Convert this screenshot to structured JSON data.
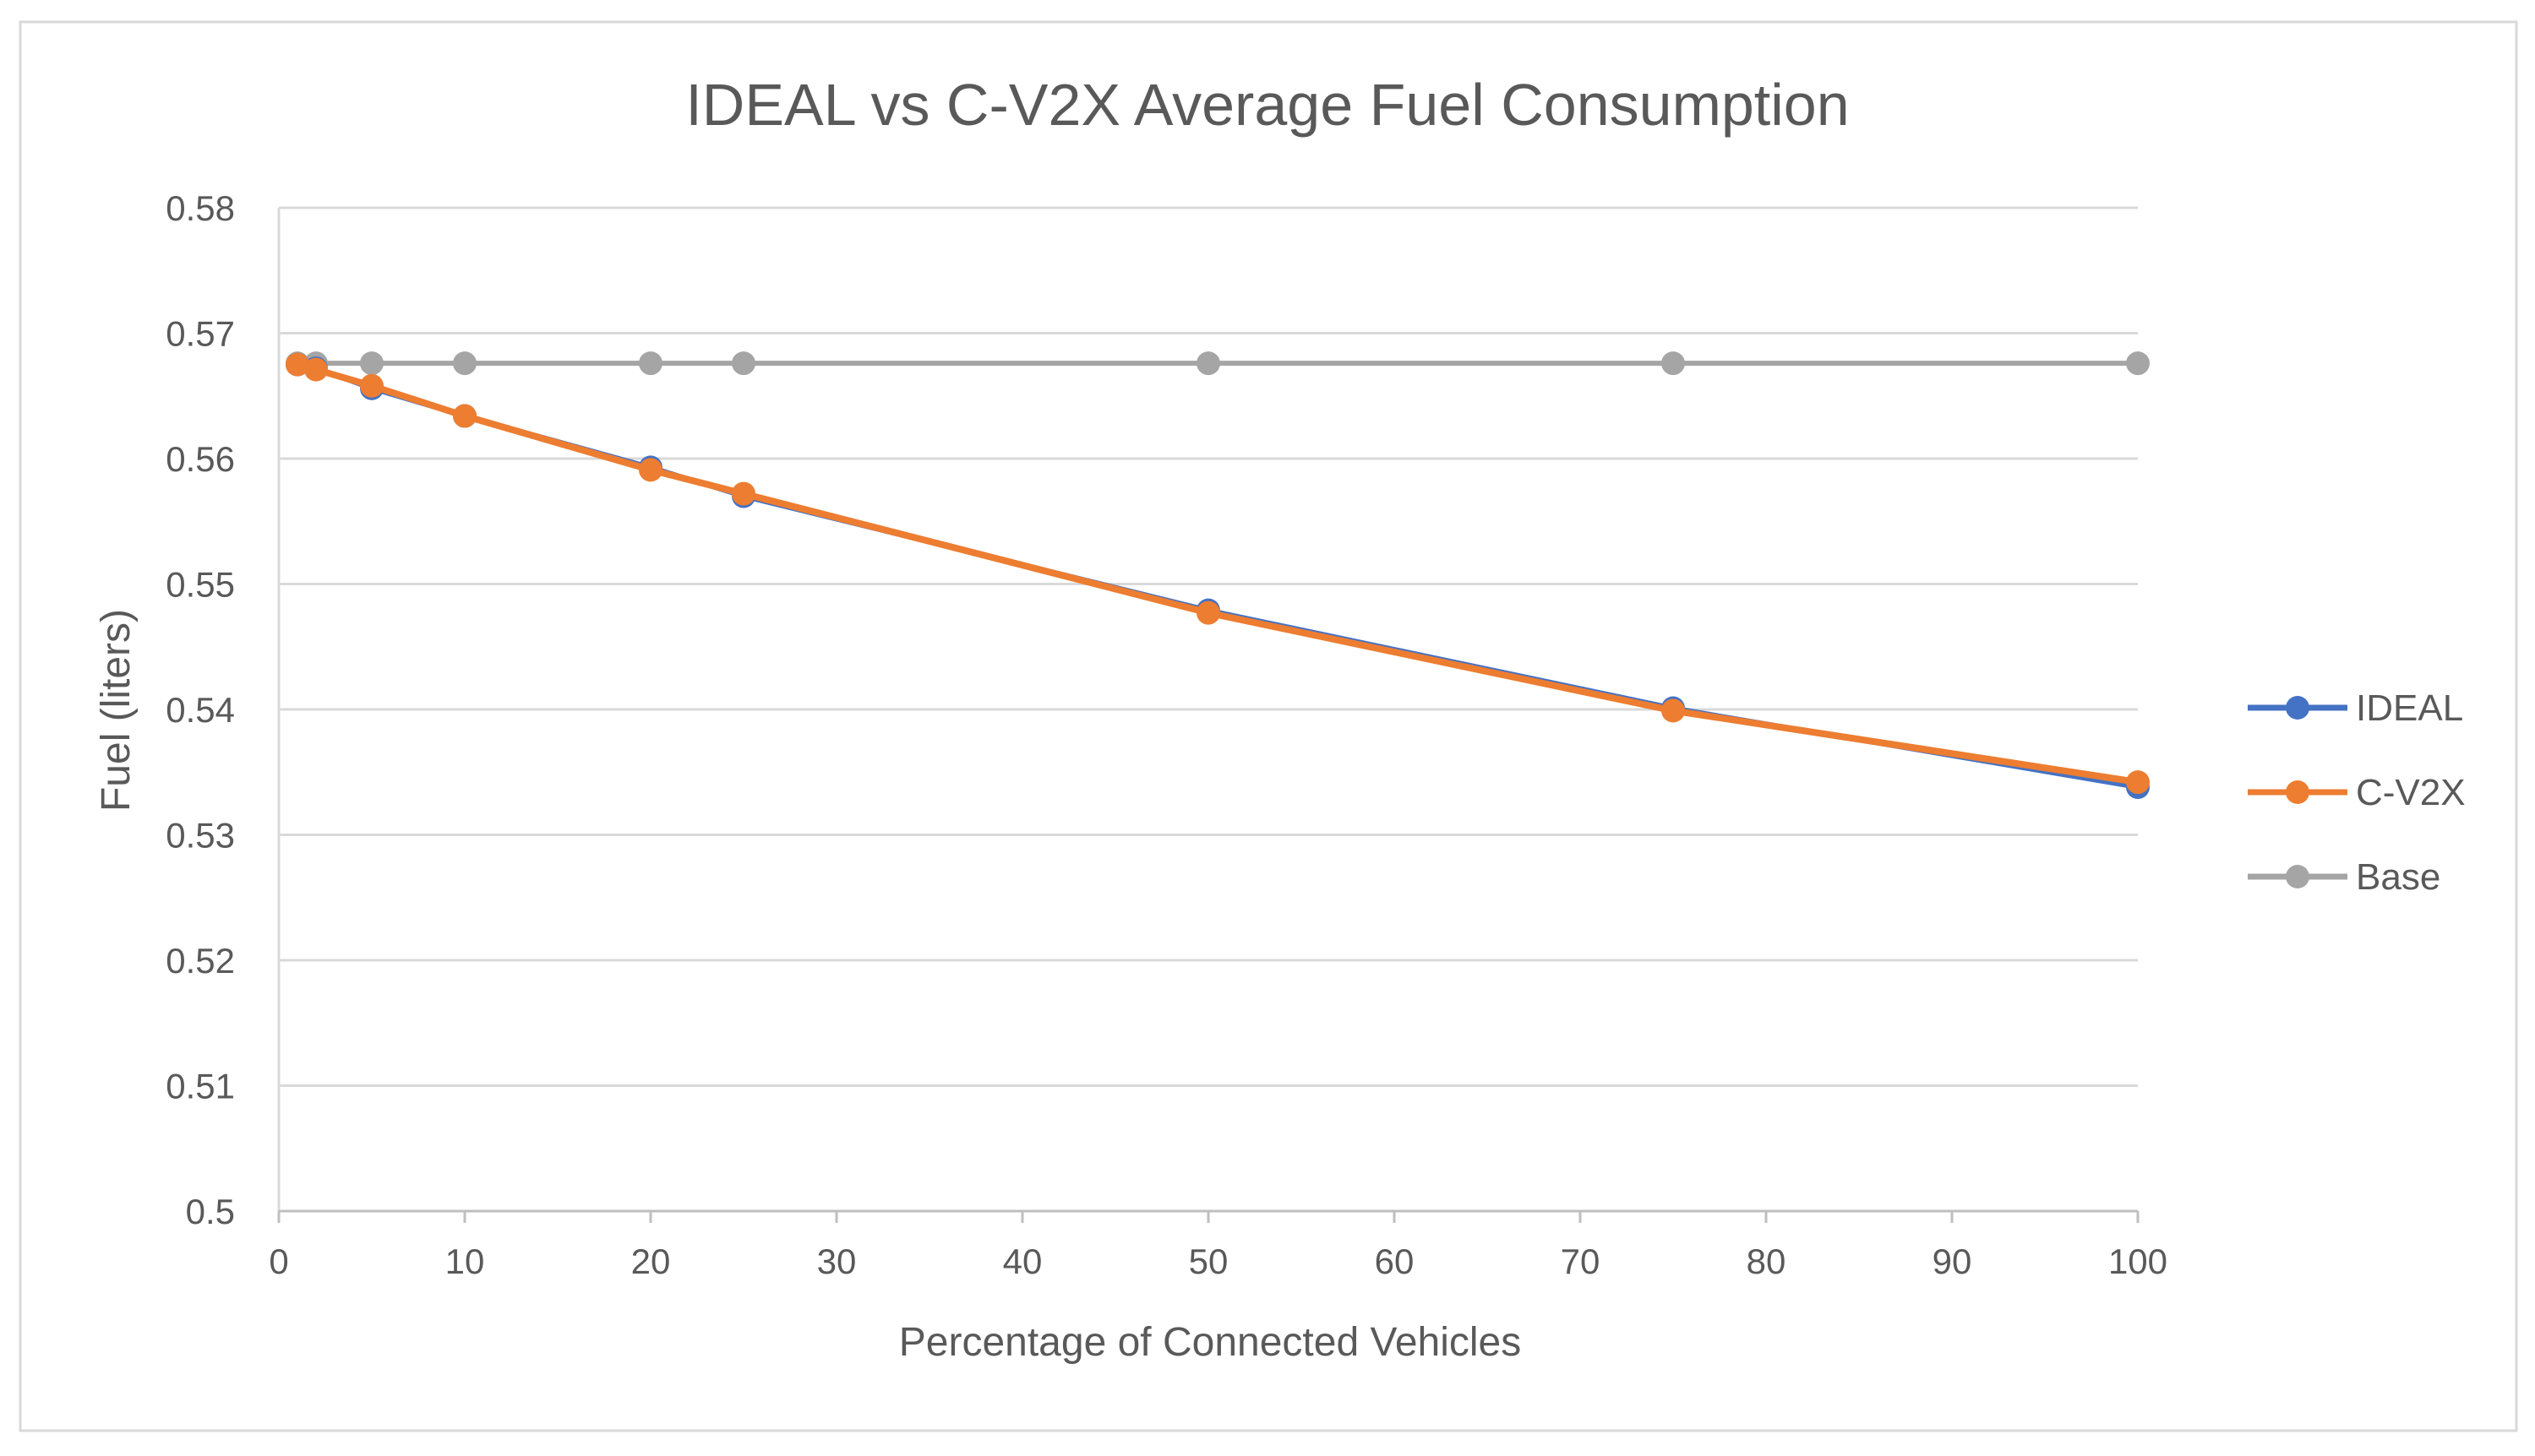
{
  "chart_data": {
    "type": "line",
    "title": "IDEAL vs C-V2X Average Fuel Consumption",
    "xlabel": "Percentage of Connected Vehicles",
    "ylabel": "Fuel (liters)",
    "xlim": [
      0,
      100
    ],
    "ylim": [
      0.5,
      0.58
    ],
    "x_ticks": [
      0,
      10,
      20,
      30,
      40,
      50,
      60,
      70,
      80,
      90,
      100
    ],
    "y_ticks": [
      0.5,
      0.51,
      0.52,
      0.53,
      0.54,
      0.55,
      0.56,
      0.57,
      0.58
    ],
    "x_tick_labels": [
      "0",
      "10",
      "20",
      "30",
      "40",
      "50",
      "60",
      "70",
      "80",
      "90",
      "100"
    ],
    "y_tick_labels": [
      "0.5",
      "0.51",
      "0.52",
      "0.53",
      "0.54",
      "0.55",
      "0.56",
      "0.57",
      "0.58"
    ],
    "grid": true,
    "legend_position": "right",
    "x": [
      1,
      2,
      5,
      10,
      20,
      25,
      50,
      75,
      100
    ],
    "series": [
      {
        "name": "IDEAL",
        "color": "#4472C4",
        "values": [
          0.5675,
          0.5672,
          0.5656,
          0.5634,
          0.5593,
          0.557,
          0.5479,
          0.5401,
          0.5338
        ]
      },
      {
        "name": "C-V2X",
        "color": "#ED7D31",
        "values": [
          0.5675,
          0.5671,
          0.5658,
          0.5634,
          0.5591,
          0.5572,
          0.5477,
          0.5399,
          0.5342
        ]
      },
      {
        "name": "Base",
        "color": "#A5A5A5",
        "values": [
          0.5676,
          0.5676,
          0.5676,
          0.5676,
          0.5676,
          0.5676,
          0.5676,
          0.5676,
          0.5676
        ]
      }
    ]
  }
}
